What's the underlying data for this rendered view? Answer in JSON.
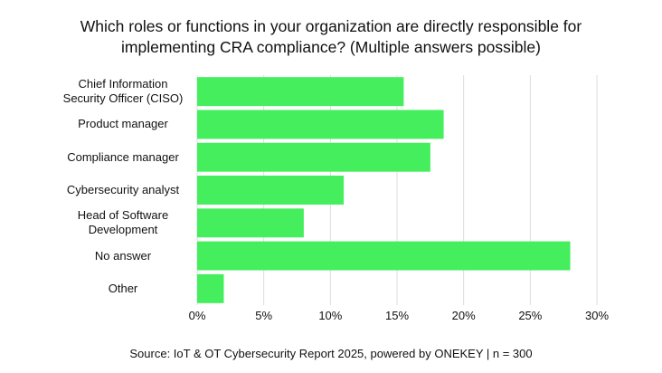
{
  "chart_data": {
    "type": "bar",
    "orientation": "horizontal",
    "title": "Which roles or functions in your organization are directly responsible for\nimplementing CRA compliance? (Multiple answers possible)",
    "categories": [
      "Chief Information\nSecurity Officer (CISO)",
      "Product manager",
      "Compliance manager",
      "Cybersecurity analyst",
      "Head of Software\nDevelopment",
      "No answer",
      "Other"
    ],
    "values": [
      15.5,
      18.5,
      17.5,
      11,
      8,
      28,
      2
    ],
    "color": "#44ee5c",
    "xlim": [
      0,
      30
    ],
    "xticks": [
      {
        "value": 0,
        "label": "0%"
      },
      {
        "value": 5,
        "label": "5%"
      },
      {
        "value": 10,
        "label": "10%"
      },
      {
        "value": 15,
        "label": "15%"
      },
      {
        "value": 20,
        "label": "20%"
      },
      {
        "value": 25,
        "label": "25%"
      },
      {
        "value": 30,
        "label": "30%"
      }
    ],
    "grid": true,
    "source": "Source: IoT & OT Cybersecurity Report 2025, powered by ONEKEY | n = 300"
  }
}
